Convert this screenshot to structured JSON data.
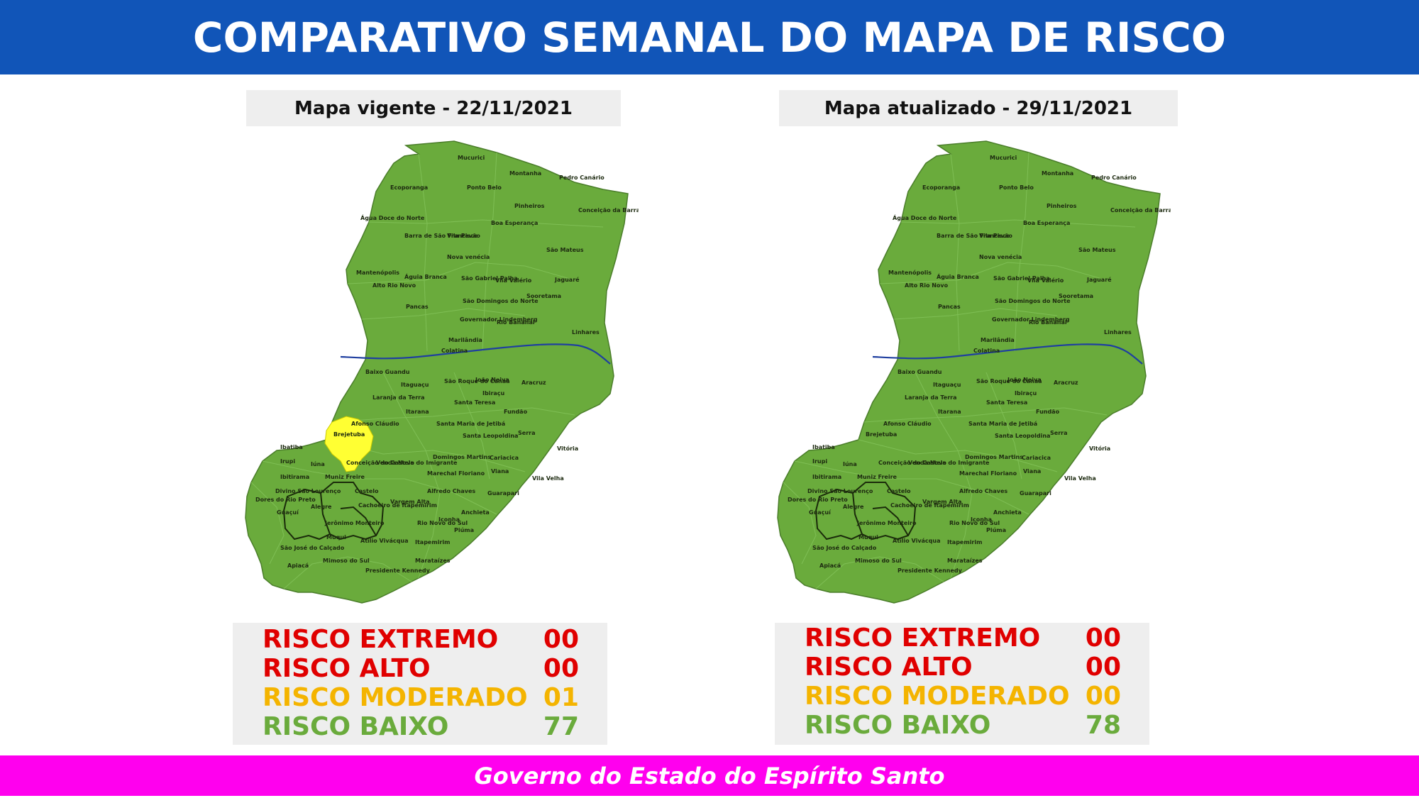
{
  "header": {
    "title": "COMPARATIVO SEMANAL DO MAPA DE RISCO"
  },
  "colors": {
    "header_bg": "#1155b8",
    "footer_bg": "#ff00ee",
    "risk_low": "#6aab3c",
    "risk_moderate": "#ffff33",
    "risk_extreme": "#e00000",
    "risk_high": "#e00000",
    "risk_moderate_text": "#f4b400",
    "river": "#1f3fa0"
  },
  "maps": [
    {
      "label": "Mapa vigente - 22/11/2021",
      "highlighted_municipality": "Afonso Cláudio",
      "legend": [
        {
          "label": "RISCO EXTREMO",
          "value": "00"
        },
        {
          "label": "RISCO ALTO",
          "value": "00"
        },
        {
          "label": "RISCO MODERADO",
          "value": "01"
        },
        {
          "label": "RISCO BAIXO",
          "value": "77"
        }
      ]
    },
    {
      "label": "Mapa atualizado - 29/11/2021",
      "highlighted_municipality": "",
      "legend": [
        {
          "label": "RISCO EXTREMO",
          "value": "00"
        },
        {
          "label": "RISCO ALTO",
          "value": "00"
        },
        {
          "label": "RISCO MODERADO",
          "value": "00"
        },
        {
          "label": "RISCO BAIXO",
          "value": "78"
        }
      ]
    }
  ],
  "municipalities": [
    "Mucurici",
    "Montanha",
    "Pedro Canário",
    "Ecoporanga",
    "Ponto Belo",
    "Pinheiros",
    "Conceição da Barra",
    "Água Doce do Norte",
    "Barra de São Francisco",
    "Vila Pavão",
    "Boa Esperança",
    "São Mateus",
    "Nova venécia",
    "Mantenópolis",
    "Águia Branca",
    "São Gabriel Palha",
    "Vila Valério",
    "Jaguaré",
    "Alto Rio Novo",
    "São Domingos do Norte",
    "Sooretama",
    "Pancas",
    "Governador Lindemberg",
    "Rio Bananal",
    "Linhares",
    "Marilândia",
    "Colatina",
    "Baixo Guandu",
    "São Roque do Canaã",
    "João Neiva",
    "Aracruz",
    "Itaguaçu",
    "Ibiraçu",
    "Laranja da Terra",
    "Santa Teresa",
    "Itarana",
    "Fundão",
    "Afonso Cláudio",
    "Santa Maria de Jetibá",
    "Serra",
    "Brejetuba",
    "Santa Leopoldina",
    "Vitória",
    "Ibatiba",
    "Domingos Martins",
    "Cariacica",
    "Irupi",
    "Iúna",
    "Conceição do Castelo",
    "Venda Nova do Imigrante",
    "Viana",
    "Ibitirama",
    "Muniz Freire",
    "Marechal Floriano",
    "Vila Velha",
    "Divino São Lourenço",
    "Castelo",
    "Alfredo Chaves",
    "Guarapari",
    "Dores do Rio Preto",
    "Vargem Alta",
    "Guaçuí",
    "Alegre",
    "Cachoeiro de Itapemirim",
    "Anchieta",
    "Jerônimo Monteiro",
    "Iconha",
    "Rio Novo do Sul",
    "Piúma",
    "Muqui",
    "São José do Calçado",
    "Atílio Vivácqua",
    "Itapemirim",
    "Apiacá",
    "Mimoso do Sul",
    "Presidente Kennedy",
    "Marataízes"
  ],
  "footer": {
    "text": "Governo do Estado do Espírito Santo"
  }
}
